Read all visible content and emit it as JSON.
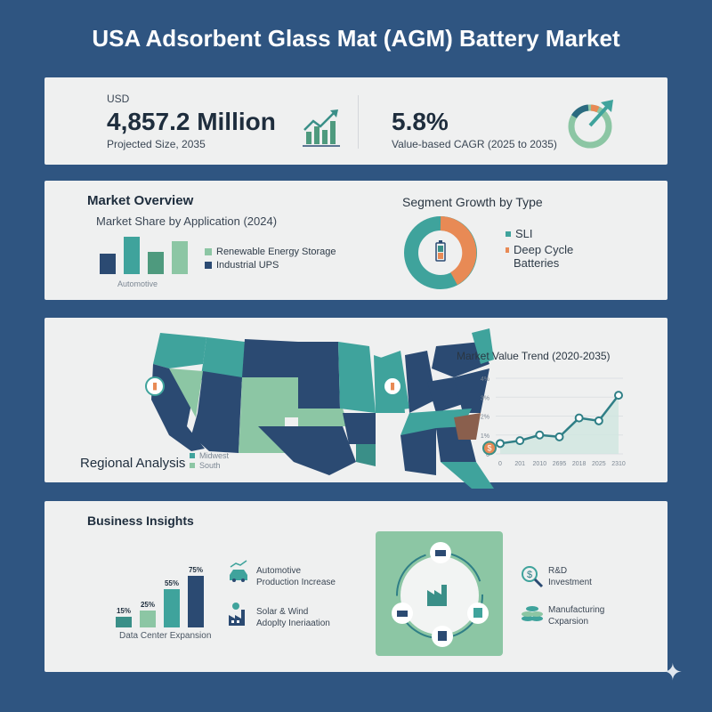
{
  "title": "USA Adsorbent Glass Mat (AGM) Battery Market",
  "colors": {
    "background": "#2f5581",
    "navy": "#2b4a72",
    "teal": "#3fa39c",
    "mint": "#8cc6a4",
    "green": "#4e9a7e",
    "orange": "#e88a55",
    "card": "#eff0f0"
  },
  "kpi": {
    "currency": "USD",
    "size_value": "4,857.2 Million",
    "size_label": "Projected Size, 2035",
    "size_icon": "bar-chart-up-icon",
    "cagr_value": "5.8%",
    "cagr_label": "Value-based CAGR (2025 to 2035)",
    "cagr_icon": "gauge-arrow-icon"
  },
  "overview": {
    "heading": "Market Overview",
    "subheading": "Market Share by Application (2024)",
    "bar_axis_label": "Automotive",
    "legend": [
      {
        "label": "Renewable Energy Storage",
        "color": "#8cc6a4"
      },
      {
        "label": "Industrial UPS",
        "color": "#2b4a72"
      }
    ],
    "bars": [
      {
        "color": "#2b4a72",
        "level": 0.55
      },
      {
        "color": "#3fa39c",
        "level": 1.0
      },
      {
        "color": "#4e9a7e",
        "level": 0.6
      },
      {
        "color": "#8cc6a4",
        "level": 0.87
      }
    ]
  },
  "segment": {
    "heading": "Segment Growth by Type",
    "legend": [
      {
        "label": "SLI",
        "color": "#3fa39c",
        "share": 0.58
      },
      {
        "label": "Deep Cycle Batteries",
        "color": "#e88a55",
        "share": 0.42
      }
    ]
  },
  "regional": {
    "heading": "Regional Analysis",
    "legend": [
      {
        "label": "Midwest",
        "color": "#3fa39c"
      },
      {
        "label": "South",
        "color": "#8cc6a4"
      }
    ]
  },
  "chart_data": {
    "type": "line",
    "title": "Market Value Trend (2020-2035)",
    "x": [
      "0",
      "201",
      "2010",
      "2695",
      "2018",
      "2025",
      "2310"
    ],
    "values": [
      0.55,
      0.7,
      1.0,
      0.9,
      1.9,
      1.75,
      3.1
    ],
    "y_ticks": [
      "0",
      "1%",
      "2%",
      "3%",
      "4%"
    ],
    "ylim": [
      0,
      4
    ],
    "grid": true,
    "color": "#2f7f86"
  },
  "insights": {
    "heading": "Business Insights",
    "bars": [
      {
        "label": "15%",
        "value": 15,
        "color": "#3a8f88"
      },
      {
        "label": "25%",
        "value": 25,
        "color": "#8cc6a4"
      },
      {
        "label": "55%",
        "value": 55,
        "color": "#3fa39c"
      },
      {
        "label": "75%",
        "value": 75,
        "color": "#2b4a72"
      }
    ],
    "bar_caption": "Data Center Expansion",
    "drivers": [
      {
        "icon": "car-trend-icon",
        "line1": "Automotive",
        "line2": "Production Increase"
      },
      {
        "icon": "solar-factory-icon",
        "line1": "Solar & Wind",
        "line2": "Adoplty Ineriaation"
      }
    ],
    "side_items": [
      {
        "icon": "dollar-magnifier-icon",
        "line1": "R&D",
        "line2": "Investment"
      },
      {
        "icon": "coin-stack-icon",
        "line1": "Manufacturing",
        "line2": "Cxparsion"
      }
    ]
  }
}
